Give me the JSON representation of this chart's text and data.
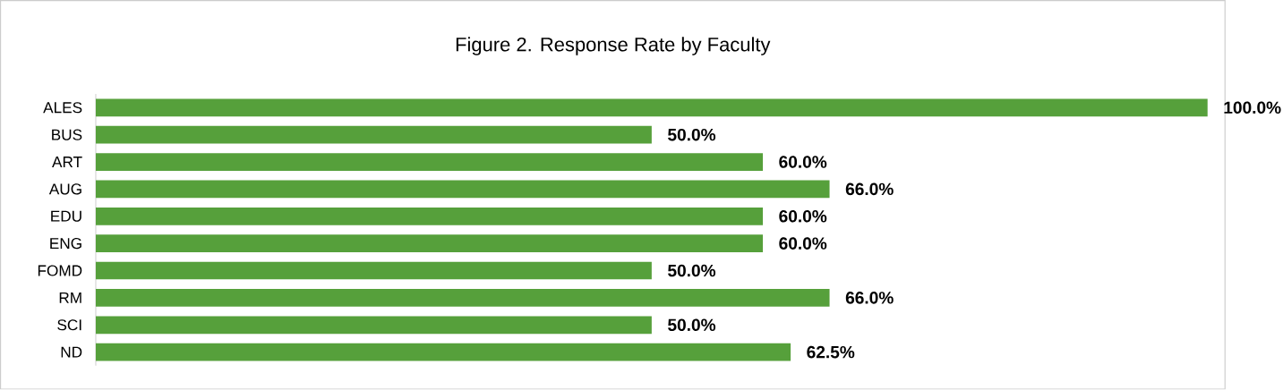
{
  "chart_data": {
    "type": "bar",
    "orientation": "horizontal",
    "title": "Figure 2. Response Rate by Faculty",
    "categories": [
      "ALES",
      "BUS",
      "ART",
      "AUG",
      "EDU",
      "ENG",
      "FOMD",
      "RM",
      "SCI",
      "ND"
    ],
    "values": [
      100,
      50,
      60,
      66,
      60,
      60,
      50,
      66,
      50,
      62.5
    ],
    "value_labels": [
      "100.0%",
      "50.0%",
      "60.0%",
      "66.0%",
      "60.0%",
      "60.0%",
      "50.0%",
      "66.0%",
      "50.0%",
      "62.5%"
    ],
    "color": "#56a03b"
  }
}
